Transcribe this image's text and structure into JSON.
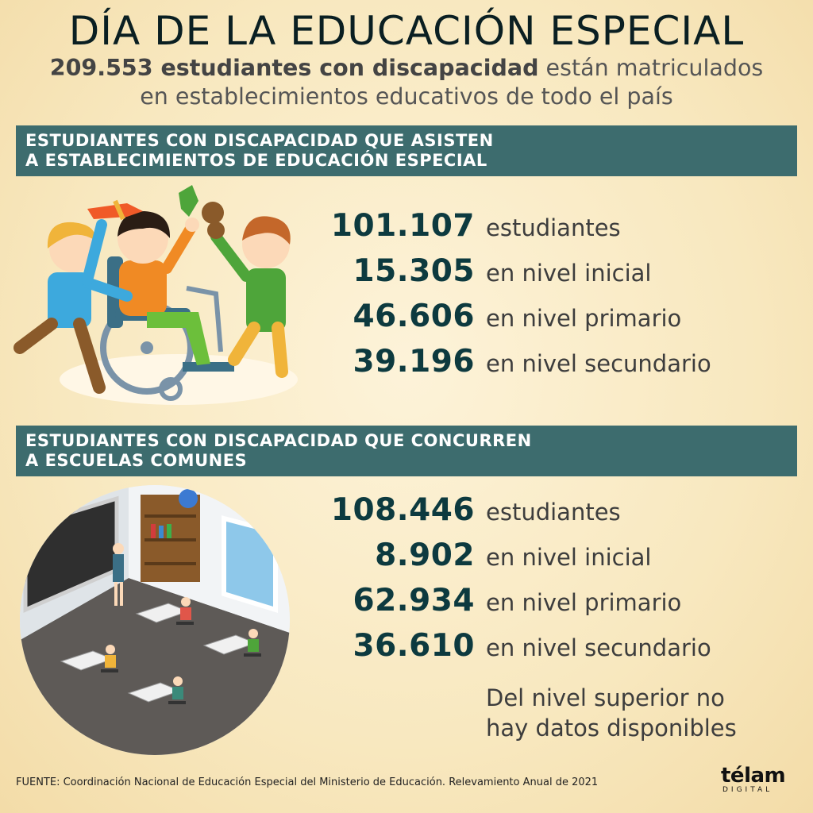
{
  "header": {
    "title": "DÍA DE LA EDUCACIÓN ESPECIAL",
    "subtitle_bold": "209.553 estudiantes con discapacidad",
    "subtitle_rest": " están matriculados",
    "subtitle_line2": "en establecimientos educativos de todo el país"
  },
  "section1": {
    "banner_line1": "ESTUDIANTES CON DISCAPACIDAD QUE ASISTEN",
    "banner_line2": "A ESTABLECIMIENTOS DE EDUCACIÓN ESPECIAL",
    "rows": [
      {
        "value": "101.107",
        "label": "estudiantes"
      },
      {
        "value": "15.305",
        "label": "en nivel inicial"
      },
      {
        "value": "46.606",
        "label": "en nivel primario"
      },
      {
        "value": "39.196",
        "label": "en nivel secundario"
      }
    ]
  },
  "section2": {
    "banner_line1": "ESTUDIANTES CON DISCAPACIDAD QUE CONCURREN",
    "banner_line2": "A ESCUELAS COMUNES",
    "rows": [
      {
        "value": "108.446",
        "label": "estudiantes"
      },
      {
        "value": "8.902",
        "label": "en nivel inicial"
      },
      {
        "value": "62.934",
        "label": "en nivel primario"
      },
      {
        "value": "36.610",
        "label": "en nivel secundario"
      }
    ],
    "note_line1": "Del nivel superior no",
    "note_line2": "hay datos disponibles"
  },
  "footer": {
    "source": "FUENTE: Coordinación Nacional de Educación Especial del Ministerio de Educación. Relevamiento Anual de 2021",
    "logo_word": "télam",
    "logo_sub": "DIGITAL"
  },
  "colors": {
    "banner": "#3d6c6e",
    "number": "#0d3a3f",
    "background": "#f8e8bf"
  },
  "icons": [
    "children-wheelchair-illustration",
    "classroom-illustration",
    "telam-logo"
  ]
}
